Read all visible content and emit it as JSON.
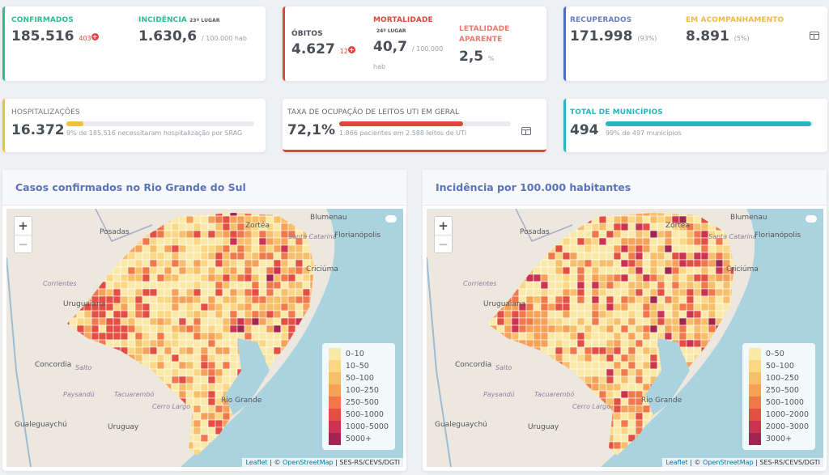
{
  "cards": {
    "confirmados": {
      "label": "CONFIRMADOS",
      "value": "185.516",
      "delta": "403",
      "color": "#2dbf8a"
    },
    "incidencia": {
      "label": "INCIDÊNCIA",
      "rank": "23º LUGAR",
      "value": "1.630,6",
      "unit": "/ 100.000 hab"
    },
    "obitos": {
      "label": "ÓBITOS",
      "value": "4.627",
      "delta": "12",
      "color": "#e0473b"
    },
    "mortalidade": {
      "label": "MORTALIDADE",
      "rank": "24º LUGAR",
      "value": "40,7",
      "unit": "/ 100.000",
      "unit2": "hab"
    },
    "letalidade": {
      "label": "LETALIDADE APARENTE",
      "value": "2,5",
      "unit": "%"
    },
    "recuperados": {
      "label": "RECUPERADOS",
      "value": "171.998",
      "pct": "(93%)",
      "color": "#4e6bc7"
    },
    "acompanhamento": {
      "label": "EM ACOMPANHAMENTO",
      "value": "8.891",
      "pct": "(5%)",
      "color": "#f2b94a"
    },
    "hospitalizacoes": {
      "label": "HOSPITALIZAÇÕES",
      "value": "16.372",
      "text": "9% de 185.516 necessitaram hospitalização por SRAG",
      "progress": 9,
      "color": "#f2c037"
    },
    "uti": {
      "label": "TAXA DE OCUPAÇÃO DE LEITOS UTI EM GERAL",
      "value": "72,1%",
      "text": "1.866 pacientes em 2.588 leitos de UTI",
      "progress": 72.1,
      "color": "#e0473b"
    },
    "municipios": {
      "label": "TOTAL DE MUNICÍPIOS",
      "value": "494",
      "text": "99% de 497 municípios",
      "progress": 99,
      "color": "#2bb3c5"
    }
  },
  "maps": [
    {
      "title": "Casos confirmados no Rio Grande do Sul",
      "legend": [
        {
          "label": "0–10",
          "color": "#fbe9a8"
        },
        {
          "label": "10–50",
          "color": "#fbd784"
        },
        {
          "label": "50–100",
          "color": "#f8bf6a"
        },
        {
          "label": "100–250",
          "color": "#f6a158"
        },
        {
          "label": "250–500",
          "color": "#f1784a"
        },
        {
          "label": "500–1000",
          "color": "#e44f44"
        },
        {
          "label": "1000–5000",
          "color": "#cb3450"
        },
        {
          "label": "5000+",
          "color": "#9e2650"
        }
      ]
    },
    {
      "title": "Incidência por 100.000 habitantes",
      "legend": [
        {
          "label": "0–50",
          "color": "#fbe9a8"
        },
        {
          "label": "50–100",
          "color": "#fbd784"
        },
        {
          "label": "100–250",
          "color": "#f8bf6a"
        },
        {
          "label": "250–500",
          "color": "#f6a158"
        },
        {
          "label": "500–1000",
          "color": "#f1784a"
        },
        {
          "label": "1000–2000",
          "color": "#e44f44"
        },
        {
          "label": "2000–3000",
          "color": "#cb3450"
        },
        {
          "label": "3000+",
          "color": "#9e2650"
        }
      ]
    }
  ],
  "map_common": {
    "zoom_in": "+",
    "zoom_out": "−",
    "attribution": {
      "leaflet": "Leaflet",
      "sep": " | © ",
      "osm": "OpenStreetMap",
      "source": " | SES-RS/CEVS/DGTI"
    },
    "places": [
      "Blumenau",
      "Zortéa",
      "Posadas",
      "Santa Catarina",
      "Florianópolis",
      "Corrientes",
      "Uruguaiana",
      "Concordia",
      "Salto",
      "Paysandú",
      "Tacuarembó",
      "Cerro Largo",
      "Gualeguaychú",
      "Uruguay",
      "Rio Grande",
      "Criciúma"
    ]
  }
}
